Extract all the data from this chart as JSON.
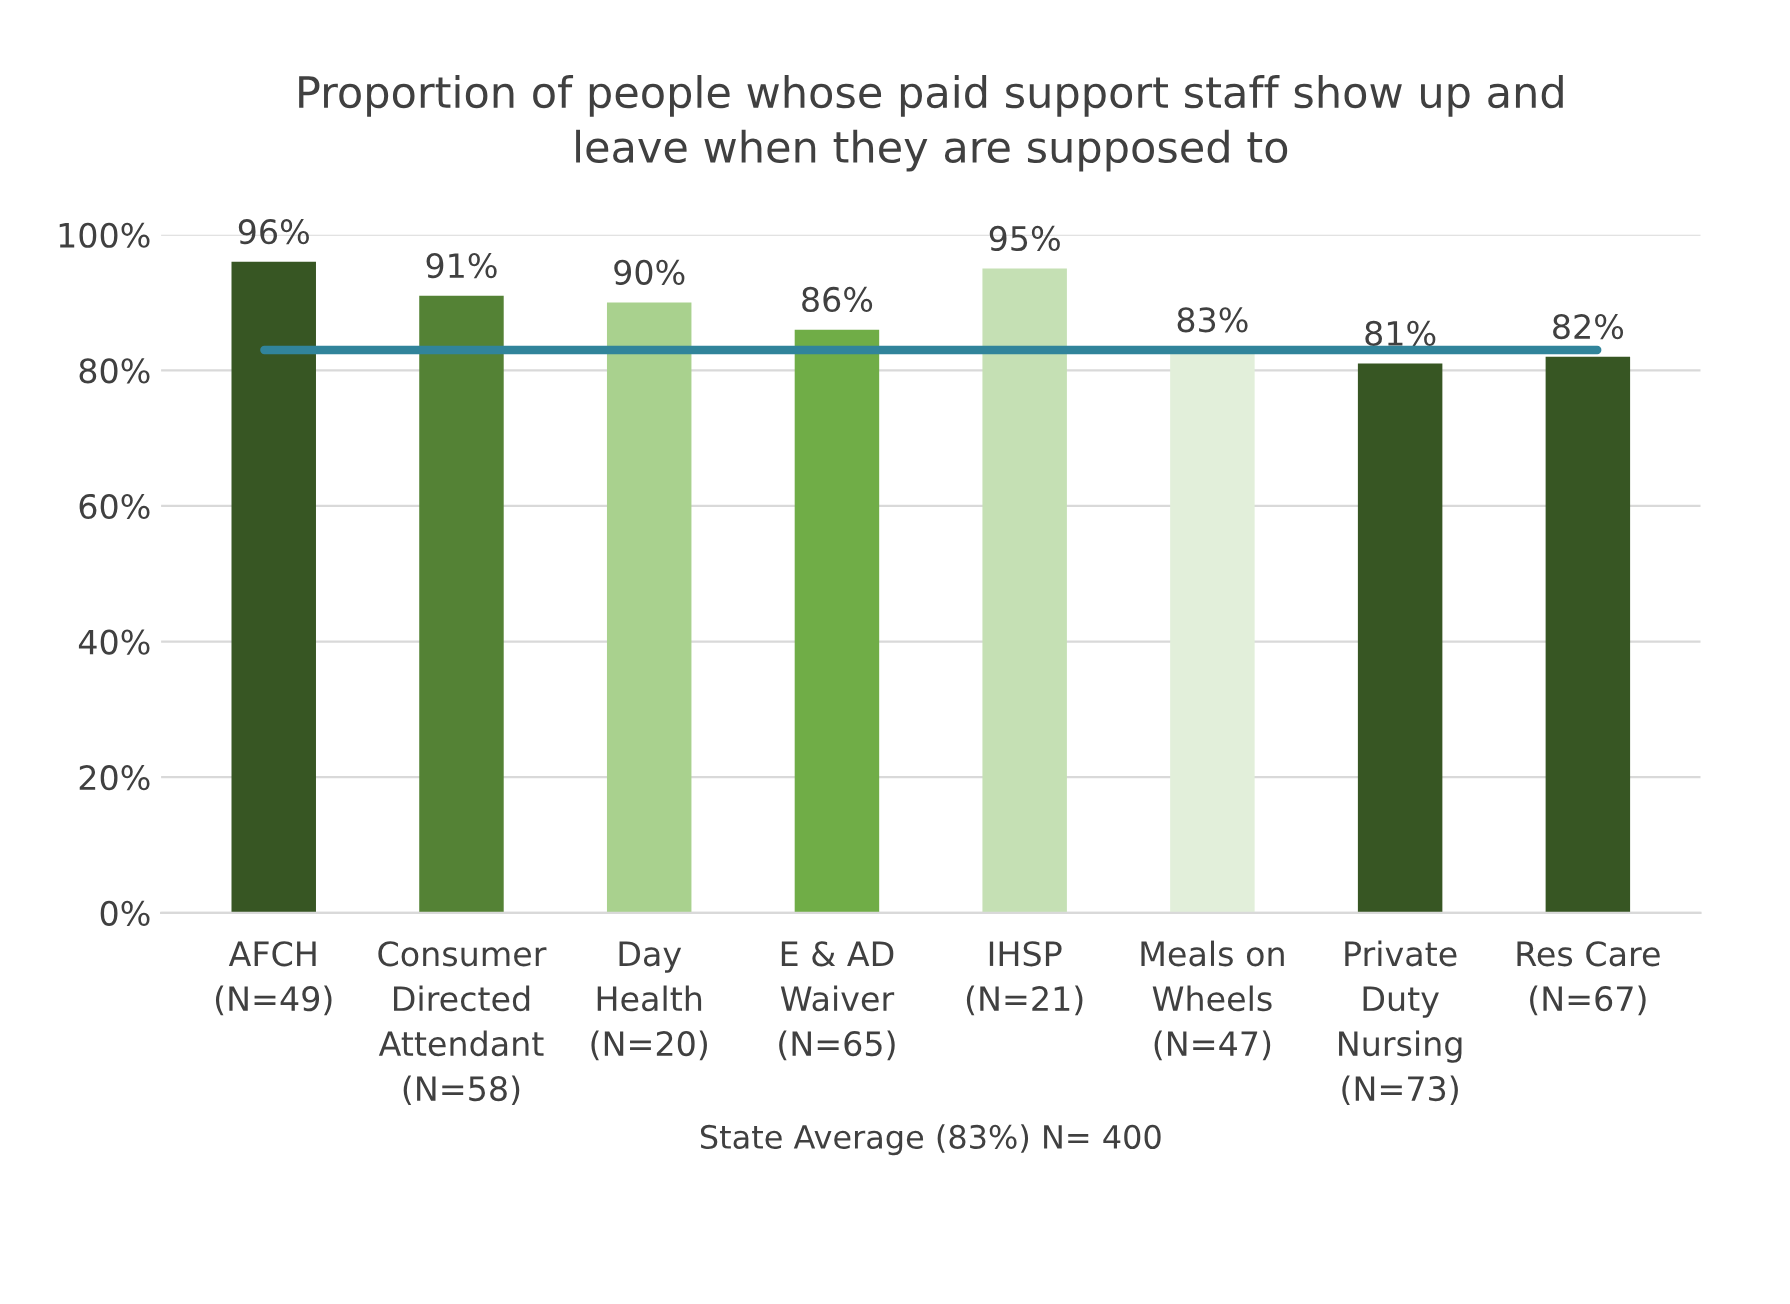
{
  "chart_data": {
    "type": "bar",
    "title": "Proportion of people whose paid support staff show up and\nleave when they are supposed to",
    "categories": [
      "AFCH\n(N=49)",
      "Consumer\nDirected\nAttendant\n(N=58)",
      "Day\nHealth\n(N=20)",
      "E & AD\nWaiver\n(N=65)",
      "IHSP\n(N=21)",
      "Meals on\nWheels\n(N=47)",
      "Private\nDuty\nNursing\n(N=73)",
      "Res Care\n(N=67)"
    ],
    "values": [
      96,
      91,
      90,
      86,
      95,
      83,
      81,
      82
    ],
    "value_labels": [
      "96%",
      "91%",
      "90%",
      "86%",
      "95%",
      "83%",
      "81%",
      "82%"
    ],
    "colors": [
      "#375623",
      "#548235",
      "#a9d18e",
      "#70ad47",
      "#c5e0b4",
      "#e2efda",
      "#375623",
      "#375623"
    ],
    "xlabel": "State Average (83%) N= 400",
    "ref_lines": [
      {
        "axis": "y",
        "value": 83,
        "color": "#31849b"
      }
    ],
    "ylim": [
      0,
      100
    ],
    "yticks": [
      {
        "value": 0,
        "label": "0%"
      },
      {
        "value": 20,
        "label": "20%"
      },
      {
        "value": 40,
        "label": "40%"
      },
      {
        "value": 60,
        "label": "60%"
      },
      {
        "value": 80,
        "label": "80%"
      },
      {
        "value": 100,
        "label": "100%"
      }
    ],
    "grid": "y"
  }
}
